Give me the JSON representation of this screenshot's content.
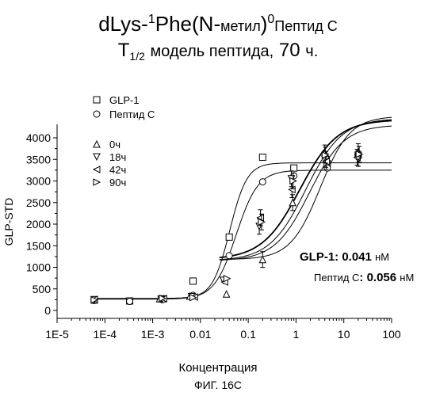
{
  "title": {
    "line1_main": "dLys-",
    "line1_sup1": "1",
    "line1_mid": "Phe(N-",
    "line1_small": "метил",
    "line1_close": ")",
    "line1_sup2": "0",
    "line1_tail": "Пептид C",
    "line2_t": "T",
    "line2_sub": "1/2",
    "line2_rest": "модель пептида,",
    "line2_num": "70",
    "line2_unit": "ч."
  },
  "annotations": {
    "glp1_label": "GLP-1:",
    "glp1_value": "0.041",
    "glp1_unit": "нМ",
    "pepC_label": "Пептид C",
    "pepC_value": ": 0.056",
    "pepC_unit": "нМ"
  },
  "caption": "ФИГ. 16C",
  "chart_data": {
    "type": "scatter",
    "xlabel": "Концентрация",
    "ylabel": "GLP-STD",
    "xscale": "log",
    "xlim": [
      1e-05,
      100
    ],
    "ylim": [
      0,
      4200
    ],
    "x_tick_labels": [
      "1E-5",
      "1E-4",
      "1E-3",
      "0.01",
      "0.1",
      "1",
      "10",
      "100"
    ],
    "x_tick_values": [
      1e-05,
      0.0001,
      0.001,
      0.01,
      0.1,
      1,
      10,
      100
    ],
    "y_tick_values": [
      0,
      500,
      1000,
      1500,
      2000,
      2500,
      3000,
      3500,
      4000
    ],
    "legend": [
      {
        "name": "GLP-1",
        "marker": "square"
      },
      {
        "name": "Пептид C",
        "marker": "circle"
      },
      {
        "name": "0ч",
        "marker": "triangle-up"
      },
      {
        "name": "18ч",
        "marker": "triangle-down"
      },
      {
        "name": "42ч",
        "marker": "triangle-left"
      },
      {
        "name": "90ч",
        "marker": "triangle-right"
      }
    ],
    "legend_position": "top-left",
    "series": [
      {
        "name": "GLP-1",
        "marker": "square",
        "x": [
          6e-05,
          0.00033,
          0.0016,
          0.007,
          0.04,
          0.2,
          0.9,
          4.5,
          20
        ],
        "y": [
          250,
          220,
          270,
          680,
          1700,
          3550,
          3300,
          3400,
          3600
        ]
      },
      {
        "name": "Пептид C",
        "marker": "circle",
        "x": [
          6e-05,
          0.00033,
          0.0016,
          0.007,
          0.04,
          0.2,
          0.9,
          4.5,
          20
        ],
        "y": [
          230,
          210,
          250,
          350,
          1270,
          2980,
          3120,
          3300,
          3600
        ]
      },
      {
        "name": "0ч",
        "marker": "triangle-up",
        "x": [
          6e-05,
          0.0014,
          0.006,
          0.035,
          0.2,
          0.85,
          4,
          20
        ],
        "y": [
          240,
          270,
          330,
          380,
          1180,
          2500,
          3650,
          3680
        ]
      },
      {
        "name": "18ч",
        "marker": "triangle-down",
        "x": [
          6e-05,
          0.0015,
          0.0065,
          0.03,
          0.17,
          0.8,
          4.2,
          20
        ],
        "y": [
          250,
          260,
          320,
          700,
          1950,
          3050,
          3500,
          3520
        ]
      },
      {
        "name": "42ч",
        "marker": "triangle-left",
        "x": [
          6e-05,
          0.0017,
          0.0075,
          0.032,
          0.18,
          0.82,
          4.3,
          19
        ],
        "y": [
          255,
          275,
          310,
          660,
          2150,
          2800,
          3450,
          3550
        ]
      },
      {
        "name": "90ч",
        "marker": "triangle-right",
        "x": [
          6e-05,
          0.0016,
          0.007,
          0.036,
          0.19,
          0.87,
          4.1,
          21
        ],
        "y": [
          245,
          280,
          300,
          740,
          2050,
          3000,
          3600,
          3620
        ]
      }
    ]
  }
}
